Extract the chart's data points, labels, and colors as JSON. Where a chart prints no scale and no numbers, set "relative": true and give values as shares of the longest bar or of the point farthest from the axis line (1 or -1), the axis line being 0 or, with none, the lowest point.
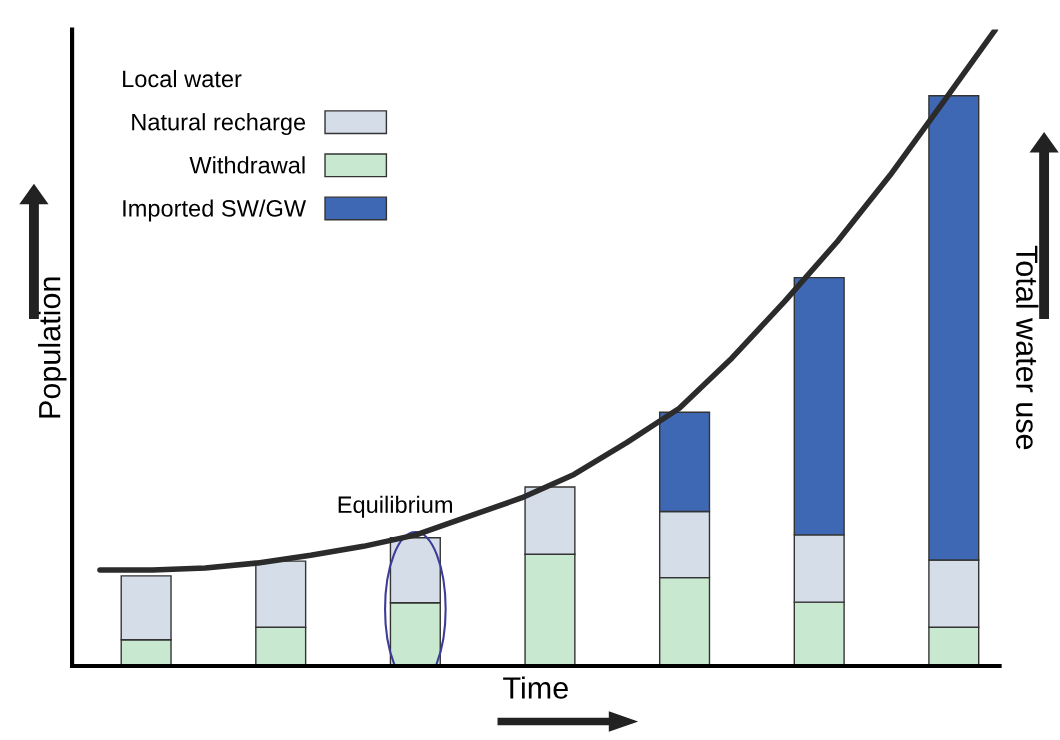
{
  "chart_data": [
    {
      "type": "bar",
      "relative": true,
      "stacked": true,
      "xlabel": "Time",
      "ylabel": "Population",
      "y2label": "Total water use",
      "legend_title": "Local water",
      "legend": "top left",
      "grid": false,
      "categories": [
        null,
        null,
        null,
        null,
        null,
        null,
        null
      ],
      "series": [
        {
          "name": "Withdrawal",
          "color": "#c8e8d0",
          "values": [
            0.046,
            0.068,
            0.111,
            0.196,
            0.155,
            0.112,
            0.068
          ]
        },
        {
          "name": "Natural recharge",
          "color": "#d5dde9",
          "values": [
            0.112,
            0.116,
            0.114,
            0.118,
            0.116,
            0.118,
            0.118
          ]
        },
        {
          "name": "Imported SW/GW",
          "color": "#3f68b4",
          "values": [
            null,
            null,
            null,
            null,
            0.174,
            0.451,
            0.814
          ]
        }
      ],
      "annotations": [
        "Equilibrium"
      ]
    },
    {
      "type": "line",
      "relative": true,
      "categories": [
        null,
        null,
        null,
        null,
        null,
        null,
        null,
        null,
        null,
        null,
        null,
        null,
        null,
        null,
        null,
        null,
        null,
        null
      ],
      "series": [
        {
          "color": "#2b2b2b",
          "values": [
            0.151,
            0.151,
            0.154,
            0.162,
            0.174,
            0.188,
            0.206,
            0.235,
            0.264,
            0.301,
            0.351,
            0.405,
            0.484,
            0.573,
            0.667,
            0.771,
            0.885,
            1.0
          ]
        }
      ]
    }
  ]
}
